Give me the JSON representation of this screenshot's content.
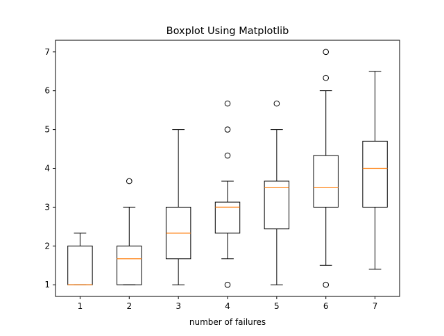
{
  "chart_data": {
    "type": "box",
    "title": "Boxplot Using Matplotlib",
    "xlabel": "number of failures",
    "ylabel": "",
    "ylim": [
      0.7,
      7.3
    ],
    "grid": false,
    "legend": "none",
    "categories": [
      "1",
      "2",
      "3",
      "4",
      "5",
      "6",
      "7"
    ],
    "x_ticks": [
      1,
      2,
      3,
      4,
      5,
      6,
      7
    ],
    "y_ticks": [
      1,
      2,
      3,
      4,
      5,
      6,
      7
    ],
    "boxes": [
      {
        "category": "1",
        "whislo": 1.0,
        "q1": 1.0,
        "med": 1.0,
        "q3": 2.0,
        "whishi": 2.33,
        "fliers": []
      },
      {
        "category": "2",
        "whislo": 1.0,
        "q1": 1.0,
        "med": 1.67,
        "q3": 2.0,
        "whishi": 3.0,
        "fliers": [
          3.67
        ]
      },
      {
        "category": "3",
        "whislo": 1.0,
        "q1": 1.67,
        "med": 2.33,
        "q3": 3.0,
        "whishi": 5.0,
        "fliers": []
      },
      {
        "category": "4",
        "whislo": 1.67,
        "q1": 2.33,
        "med": 3.0,
        "q3": 3.13,
        "whishi": 3.67,
        "fliers": [
          1.0,
          4.33,
          5.0,
          5.67
        ]
      },
      {
        "category": "5",
        "whislo": 1.0,
        "q1": 2.44,
        "med": 3.5,
        "q3": 3.67,
        "whishi": 5.0,
        "fliers": [
          5.67
        ]
      },
      {
        "category": "6",
        "whislo": 1.5,
        "q1": 3.0,
        "med": 3.5,
        "q3": 4.33,
        "whishi": 6.0,
        "fliers": [
          1.0,
          6.33,
          7.0
        ]
      },
      {
        "category": "7",
        "whislo": 1.4,
        "q1": 3.0,
        "med": 4.0,
        "q3": 4.7,
        "whishi": 6.5,
        "fliers": []
      }
    ],
    "colors": {
      "box": "#000000",
      "median": "#ff7f0e",
      "flier": "#000000",
      "axes": "#000000",
      "background": "#ffffff"
    }
  }
}
